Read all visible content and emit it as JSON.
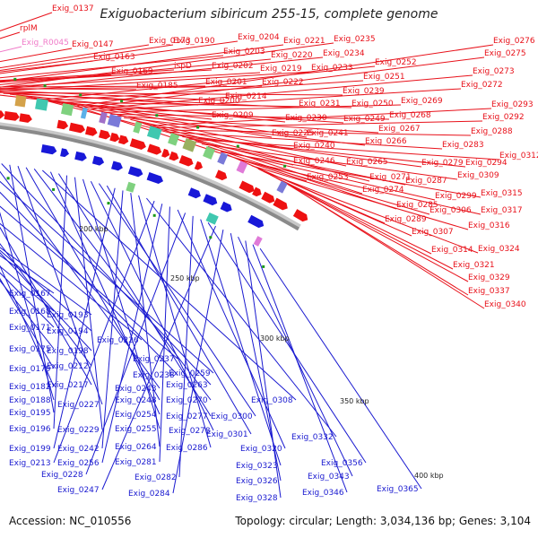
{
  "title": "Exiguobacterium sibiricum 255-15, complete genome",
  "footer": {
    "accession": "Accession: NC_010556",
    "topology": "Topology: circular; Length: 3,034,136 bp; Genes: 3,104"
  },
  "colors": {
    "forward_label": "#e8111a",
    "reverse_label": "#1a1ad0",
    "rrna_label": "#f07ac8",
    "forward_feature": "#ee1111",
    "reverse_feature": "#1818d8",
    "backbone": "#8a8a8a",
    "tick_label": "#222222"
  },
  "kbp_ticks": [
    {
      "label": "200 kbp"
    },
    {
      "label": "250 kbp"
    },
    {
      "label": "300 kbp"
    },
    {
      "label": "350 kbp"
    },
    {
      "label": "400 kbp"
    }
  ],
  "forward_labels": [
    "Exig_0137",
    "rplM",
    "Exig_R0045",
    "Exig_0147",
    "Exig_0163",
    "Exig_0169",
    "Exig_0173",
    "Exig_0185",
    "Exig_0190",
    "ispD",
    "Exig_0204",
    "Exig_0203",
    "Exig_0202",
    "Exig_0201",
    "Exig_0200",
    "Exig_0209",
    "Exig_0214",
    "Exig_0221",
    "Exig_0220",
    "Exig_0219",
    "Exig_0222",
    "Exig_0235",
    "Exig_0234",
    "Exig_0233",
    "Exig_0239",
    "Exig_0231",
    "Exig_0230",
    "Exig_0225",
    "Exig_0241",
    "Exig_0240",
    "Exig_0246",
    "Exig_0252",
    "Exig_0251",
    "Exig_0250",
    "Exig_0249",
    "Exig_0253",
    "Exig_0276",
    "Exig_0275",
    "Exig_0273",
    "Exig_0272",
    "Exig_0269",
    "Exig_0268",
    "Exig_0267",
    "Exig_0266",
    "Exig_0265",
    "Exig_0271",
    "Exig_0274",
    "Exig_0293",
    "Exig_0292",
    "Exig_0288",
    "Exig_0283",
    "Exig_0279",
    "Exig_0294",
    "Exig_0312",
    "Exig_0287",
    "Exig_0309",
    "Exig_0285",
    "Exig_0299",
    "Exig_0315",
    "Exig_0289",
    "Exig_0306",
    "Exig_0317",
    "Exig_0307",
    "Exig_0316",
    "Exig_0314",
    "Exig_0324",
    "Exig_0321",
    "Exig_0329",
    "Exig_0337",
    "Exig_0340"
  ],
  "reverse_labels": [
    "Exig_0167",
    "Exig_0168",
    "Exig_0193",
    "Exig_0171",
    "Exig_0194",
    "Exig_0175",
    "Exig_0198",
    "Exig_0226",
    "Exig_0179",
    "Exig_0212",
    "Exig_0237",
    "Exig_0182",
    "Exig_0217",
    "Exig_0238",
    "Exig_0259",
    "Exig_0188",
    "Exig_0243",
    "Exig_0263",
    "Exig_0195",
    "Exig_0227",
    "Exig_0248",
    "Exig_0270",
    "Exig_0308",
    "Exig_0254",
    "Exig_0277",
    "Exig_0196",
    "Exig_0229",
    "Exig_0255",
    "Exig_0278",
    "Exig_0300",
    "Exig_0301",
    "Exig_0199",
    "Exig_0242",
    "Exig_0264",
    "Exig_0286",
    "Exig_0332",
    "Exig_0213",
    "Exig_0256",
    "Exig_0281",
    "Exig_0320",
    "Exig_0228",
    "Exig_0282",
    "Exig_0323",
    "Exig_0356",
    "Exig_0247",
    "Exig_0284",
    "Exig_0326",
    "Exig_0343",
    "Exig_0328",
    "Exig_0346",
    "Exig_0365"
  ]
}
